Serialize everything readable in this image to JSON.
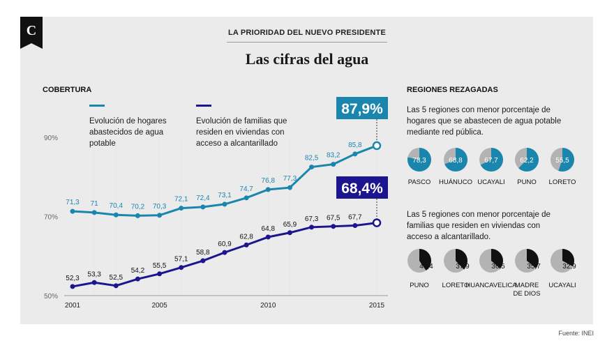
{
  "header": {
    "kicker": "LA PRIORIDAD DEL NUEVO PRESIDENTE",
    "title": "Las cifras del agua",
    "logo_glyph": "C"
  },
  "left": {
    "section_label": "COBERTURA",
    "legend": [
      {
        "label": "Evolución de hogares abastecidos de agua potable",
        "color": "#1a86ad"
      },
      {
        "label": "Evolución de familias que residen en viviendas con acceso a alcantarillado",
        "color": "#1c158f"
      }
    ],
    "callouts": [
      "87,9%",
      "68,4%"
    ]
  },
  "chart_data": {
    "type": "line",
    "x": [
      2001,
      2002,
      2003,
      2004,
      2005,
      2006,
      2007,
      2008,
      2009,
      2010,
      2011,
      2012,
      2013,
      2014,
      2015
    ],
    "x_ticks": [
      "2001",
      "2005",
      "2010",
      "2015"
    ],
    "y_ticks": [
      "90%",
      "70%",
      "50%"
    ],
    "series": [
      {
        "name": "Evolución de hogares abastecidos de agua potable",
        "color": "#1a86ad",
        "values": [
          71.3,
          71,
          70.4,
          70.2,
          70.3,
          72.1,
          72.4,
          73.1,
          74.7,
          76.8,
          77.3,
          82.5,
          83.2,
          85.8,
          87.9
        ],
        "labels": [
          "71,3",
          "71",
          "70,4",
          "70,2",
          "70,3",
          "72,1",
          "72,4",
          "73,1",
          "74,7",
          "76,8",
          "77,3",
          "82,5",
          "83,2",
          "85,8",
          ""
        ]
      },
      {
        "name": "Evolución de familias que residen en viviendas con acceso a alcantarillado",
        "color": "#1c158f",
        "values": [
          52.3,
          53.3,
          52.5,
          54.2,
          55.5,
          57.1,
          58.8,
          60.9,
          62.8,
          64.8,
          65.9,
          67.3,
          67.5,
          67.7,
          68.4
        ],
        "labels": [
          "52,3",
          "53,3",
          "52,5",
          "54,2",
          "55,5",
          "57,1",
          "58,8",
          "60,9",
          "62,8",
          "64,8",
          "65,9",
          "67,3",
          "67,5",
          "67,7",
          ""
        ]
      }
    ]
  },
  "right": {
    "section_label": "REGIONES REZAGADAS",
    "water_text": "Las 5 regiones con menor porcentaje de hogares que se abastecen de agua potable mediante red pública.",
    "sewer_text": "Las 5 regiones con menor porcentaje de familias que residen en viviendas con acceso a alcantarillado.",
    "water_color": "#1a86ad",
    "sewer_color": "#111111",
    "rest_color": "#b3b3b3",
    "water_regions": [
      {
        "name": "PASCO",
        "value": 78.3,
        "label": "78,3"
      },
      {
        "name": "HUÁNUCO",
        "value": 68.8,
        "label": "68,8"
      },
      {
        "name": "UCAYALI",
        "value": 67.7,
        "label": "67,7"
      },
      {
        "name": "PUNO",
        "value": 62.2,
        "label": "62,2"
      },
      {
        "name": "LORETO",
        "value": 55.5,
        "label": "55,5"
      }
    ],
    "sewer_regions": [
      {
        "name": "PUNO",
        "value": 40.4,
        "label": "40,4"
      },
      {
        "name": "LORETO",
        "value": 37.9,
        "label": "37,9"
      },
      {
        "name": "HUANCAVELICA",
        "value": 36.5,
        "label": "36,5"
      },
      {
        "name": "MADRE DE DIOS",
        "value": 35.7,
        "label": "35,7"
      },
      {
        "name": "UCAYALI",
        "value": 32.9,
        "label": "32,9"
      }
    ]
  },
  "footer": {
    "source": "Fuente: INEI"
  }
}
